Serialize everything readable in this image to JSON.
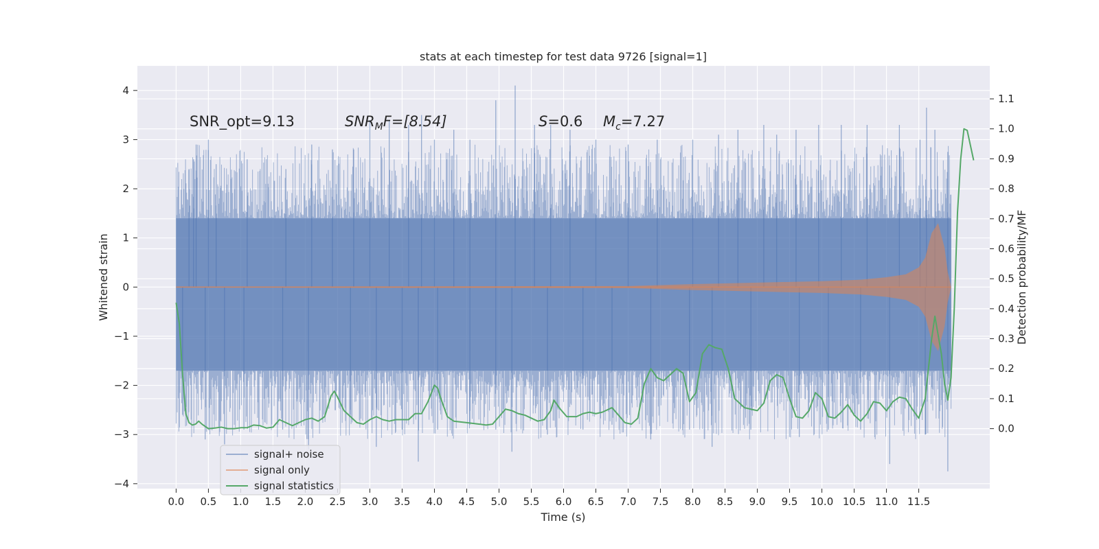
{
  "chart_data": {
    "type": "line",
    "title": "stats at each timestep for test data 9726 [signal=1]",
    "xlabel": "Time (s)",
    "ylabel": "Whitened strain",
    "y2label": "Detection probability/MF",
    "xlim": [
      -0.6,
      12.6
    ],
    "ylim": [
      -4.1,
      4.5
    ],
    "y2lim": [
      -0.2,
      1.21
    ],
    "x_ticks": [
      "0.0",
      "0.5",
      "1.0",
      "1.5",
      "2.0",
      "2.5",
      "3.0",
      "3.5",
      "4.0",
      "4.5",
      "5.0",
      "5.5",
      "6.0",
      "6.5",
      "7.0",
      "7.5",
      "8.0",
      "8.5",
      "9.0",
      "9.5",
      "10.0",
      "10.5",
      "11.0",
      "11.5"
    ],
    "y_ticks": [
      4,
      3,
      2,
      1,
      0,
      -1,
      -2,
      -3,
      -4
    ],
    "y2_ticks": [
      "0.0",
      "0.1",
      "0.2",
      "0.3",
      "0.4",
      "0.5",
      "0.6",
      "0.7",
      "0.8",
      "0.9",
      "1.0",
      "1.1"
    ],
    "grid": true,
    "legend_position": "bottom-left",
    "annotations": {
      "snr_opt": "SNR_opt=9.13",
      "snr_mf_main": "SNR",
      "snr_mf_sub": "M",
      "snr_mf_rest": "F=[8.54]",
      "s_main": "S",
      "s_rest": "=0.6",
      "mc_main": "M",
      "mc_sub": "c",
      "mc_rest": "=7.27"
    },
    "series": [
      {
        "name": "signal+ noise",
        "color": "#4c72b0",
        "kind": "noise-band",
        "x_range": [
          0.0,
          12.0
        ],
        "core_band": [
          -1.7,
          1.4
        ],
        "typical_extent": [
          -2.6,
          2.6
        ],
        "peaks": [
          [
            0.2,
            2.4
          ],
          [
            0.27,
            2.6
          ],
          [
            0.31,
            2.9
          ],
          [
            0.5,
            3.0
          ],
          [
            0.62,
            2.5
          ],
          [
            1.1,
            2.6
          ],
          [
            1.7,
            2.4
          ],
          [
            2.1,
            2.9
          ],
          [
            2.42,
            2.8
          ],
          [
            2.75,
            2.8
          ],
          [
            3.0,
            3.4
          ],
          [
            3.3,
            3.4
          ],
          [
            3.6,
            3.3
          ],
          [
            3.8,
            3.5
          ],
          [
            4.0,
            3.0
          ],
          [
            4.3,
            3.2
          ],
          [
            4.55,
            3.0
          ],
          [
            4.95,
            3.8
          ],
          [
            5.25,
            4.1
          ],
          [
            5.55,
            3.3
          ],
          [
            5.8,
            3.3
          ],
          [
            6.1,
            3.2
          ],
          [
            6.5,
            3.0
          ],
          [
            7.0,
            2.9
          ],
          [
            7.45,
            3.0
          ],
          [
            8.0,
            3.0
          ],
          [
            8.4,
            3.1
          ],
          [
            8.7,
            3.2
          ],
          [
            9.1,
            3.3
          ],
          [
            9.3,
            3.1
          ],
          [
            9.6,
            3.2
          ],
          [
            9.95,
            3.3
          ],
          [
            10.3,
            3.3
          ],
          [
            10.7,
            3.3
          ],
          [
            11.2,
            3.3
          ],
          [
            11.52,
            3.0
          ],
          [
            11.62,
            3.65
          ],
          [
            11.75,
            3.2
          ],
          [
            11.95,
            2.75
          ]
        ],
        "troughs": [
          [
            0.1,
            -2.6
          ],
          [
            0.45,
            -3.1
          ],
          [
            0.75,
            -3.2
          ],
          [
            1.05,
            -2.9
          ],
          [
            1.65,
            -2.9
          ],
          [
            2.05,
            -3.3
          ],
          [
            2.7,
            -2.6
          ],
          [
            3.1,
            -3.25
          ],
          [
            3.5,
            -2.9
          ],
          [
            3.75,
            -3.55
          ],
          [
            4.05,
            -2.9
          ],
          [
            4.55,
            -2.8
          ],
          [
            4.95,
            -2.9
          ],
          [
            5.2,
            -3.35
          ],
          [
            5.75,
            -3.0
          ],
          [
            6.3,
            -2.9
          ],
          [
            6.75,
            -2.8
          ],
          [
            7.35,
            -3.1
          ],
          [
            7.95,
            -2.9
          ],
          [
            8.3,
            -3.25
          ],
          [
            8.9,
            -2.9
          ],
          [
            9.65,
            -3.05
          ],
          [
            10.1,
            -2.9
          ],
          [
            10.6,
            -2.9
          ],
          [
            11.05,
            -3.6
          ],
          [
            11.6,
            -3.0
          ],
          [
            11.95,
            -3.75
          ]
        ]
      },
      {
        "name": "signal only",
        "color": "#dd8452",
        "kind": "chirp-envelope",
        "envelope": [
          [
            0.0,
            0.01
          ],
          [
            7.0,
            0.02
          ],
          [
            8.0,
            0.06
          ],
          [
            9.0,
            0.09
          ],
          [
            10.0,
            0.12
          ],
          [
            10.6,
            0.15
          ],
          [
            11.0,
            0.2
          ],
          [
            11.3,
            0.26
          ],
          [
            11.5,
            0.4
          ],
          [
            11.6,
            0.6
          ],
          [
            11.7,
            1.1
          ],
          [
            11.8,
            1.3
          ],
          [
            11.9,
            0.8
          ],
          [
            11.95,
            0.3
          ],
          [
            12.0,
            0.02
          ]
        ]
      },
      {
        "name": "signal statistics",
        "color": "#55a868",
        "kind": "line",
        "axis": "right",
        "points": [
          [
            0.0,
            0.42
          ],
          [
            0.05,
            0.35
          ],
          [
            0.1,
            0.18
          ],
          [
            0.15,
            0.05
          ],
          [
            0.2,
            0.02
          ],
          [
            0.25,
            0.012
          ],
          [
            0.3,
            0.015
          ],
          [
            0.35,
            0.025
          ],
          [
            0.4,
            0.015
          ],
          [
            0.5,
            0.0
          ],
          [
            0.6,
            0.002
          ],
          [
            0.7,
            0.005
          ],
          [
            0.8,
            0.0
          ],
          [
            0.9,
            0.0
          ],
          [
            1.0,
            0.003
          ],
          [
            1.1,
            0.003
          ],
          [
            1.2,
            0.012
          ],
          [
            1.3,
            0.01
          ],
          [
            1.4,
            0.002
          ],
          [
            1.5,
            0.005
          ],
          [
            1.6,
            0.03
          ],
          [
            1.7,
            0.02
          ],
          [
            1.8,
            0.01
          ],
          [
            1.9,
            0.02
          ],
          [
            2.0,
            0.03
          ],
          [
            2.1,
            0.035
          ],
          [
            2.2,
            0.025
          ],
          [
            2.3,
            0.04
          ],
          [
            2.4,
            0.11
          ],
          [
            2.45,
            0.125
          ],
          [
            2.5,
            0.105
          ],
          [
            2.6,
            0.06
          ],
          [
            2.7,
            0.04
          ],
          [
            2.8,
            0.02
          ],
          [
            2.9,
            0.015
          ],
          [
            3.0,
            0.03
          ],
          [
            3.1,
            0.04
          ],
          [
            3.2,
            0.03
          ],
          [
            3.3,
            0.025
          ],
          [
            3.4,
            0.03
          ],
          [
            3.5,
            0.03
          ],
          [
            3.6,
            0.03
          ],
          [
            3.7,
            0.05
          ],
          [
            3.8,
            0.05
          ],
          [
            3.9,
            0.09
          ],
          [
            4.0,
            0.145
          ],
          [
            4.05,
            0.135
          ],
          [
            4.1,
            0.1
          ],
          [
            4.2,
            0.04
          ],
          [
            4.3,
            0.025
          ],
          [
            4.5,
            0.02
          ],
          [
            4.7,
            0.015
          ],
          [
            4.8,
            0.012
          ],
          [
            4.9,
            0.015
          ],
          [
            5.0,
            0.04
          ],
          [
            5.1,
            0.065
          ],
          [
            5.2,
            0.06
          ],
          [
            5.3,
            0.05
          ],
          [
            5.4,
            0.045
          ],
          [
            5.5,
            0.035
          ],
          [
            5.6,
            0.025
          ],
          [
            5.7,
            0.03
          ],
          [
            5.8,
            0.06
          ],
          [
            5.85,
            0.095
          ],
          [
            5.95,
            0.065
          ],
          [
            6.05,
            0.04
          ],
          [
            6.2,
            0.04
          ],
          [
            6.3,
            0.05
          ],
          [
            6.4,
            0.055
          ],
          [
            6.5,
            0.05
          ],
          [
            6.6,
            0.055
          ],
          [
            6.7,
            0.065
          ],
          [
            6.75,
            0.07
          ],
          [
            6.85,
            0.045
          ],
          [
            6.95,
            0.02
          ],
          [
            7.05,
            0.015
          ],
          [
            7.15,
            0.035
          ],
          [
            7.25,
            0.15
          ],
          [
            7.35,
            0.2
          ],
          [
            7.45,
            0.17
          ],
          [
            7.55,
            0.16
          ],
          [
            7.65,
            0.18
          ],
          [
            7.75,
            0.2
          ],
          [
            7.85,
            0.185
          ],
          [
            7.95,
            0.09
          ],
          [
            8.05,
            0.12
          ],
          [
            8.15,
            0.25
          ],
          [
            8.25,
            0.28
          ],
          [
            8.35,
            0.27
          ],
          [
            8.45,
            0.265
          ],
          [
            8.55,
            0.2
          ],
          [
            8.65,
            0.1
          ],
          [
            8.8,
            0.07
          ],
          [
            8.9,
            0.065
          ],
          [
            9.0,
            0.06
          ],
          [
            9.1,
            0.085
          ],
          [
            9.2,
            0.16
          ],
          [
            9.3,
            0.18
          ],
          [
            9.4,
            0.17
          ],
          [
            9.5,
            0.1
          ],
          [
            9.6,
            0.04
          ],
          [
            9.7,
            0.035
          ],
          [
            9.8,
            0.06
          ],
          [
            9.9,
            0.12
          ],
          [
            10.0,
            0.1
          ],
          [
            10.1,
            0.04
          ],
          [
            10.2,
            0.035
          ],
          [
            10.3,
            0.055
          ],
          [
            10.4,
            0.08
          ],
          [
            10.5,
            0.045
          ],
          [
            10.6,
            0.025
          ],
          [
            10.7,
            0.05
          ],
          [
            10.8,
            0.09
          ],
          [
            10.9,
            0.085
          ],
          [
            11.0,
            0.06
          ],
          [
            11.1,
            0.09
          ],
          [
            11.2,
            0.105
          ],
          [
            11.3,
            0.1
          ],
          [
            11.4,
            0.065
          ],
          [
            11.5,
            0.035
          ],
          [
            11.6,
            0.1
          ],
          [
            11.7,
            0.3
          ],
          [
            11.75,
            0.375
          ],
          [
            11.85,
            0.25
          ],
          [
            11.9,
            0.15
          ],
          [
            11.95,
            0.095
          ],
          [
            12.0,
            0.17
          ],
          [
            12.05,
            0.4
          ],
          [
            12.1,
            0.72
          ],
          [
            12.15,
            0.9
          ],
          [
            12.2,
            1.0
          ],
          [
            12.25,
            0.995
          ],
          [
            12.35,
            0.895
          ]
        ]
      }
    ]
  }
}
